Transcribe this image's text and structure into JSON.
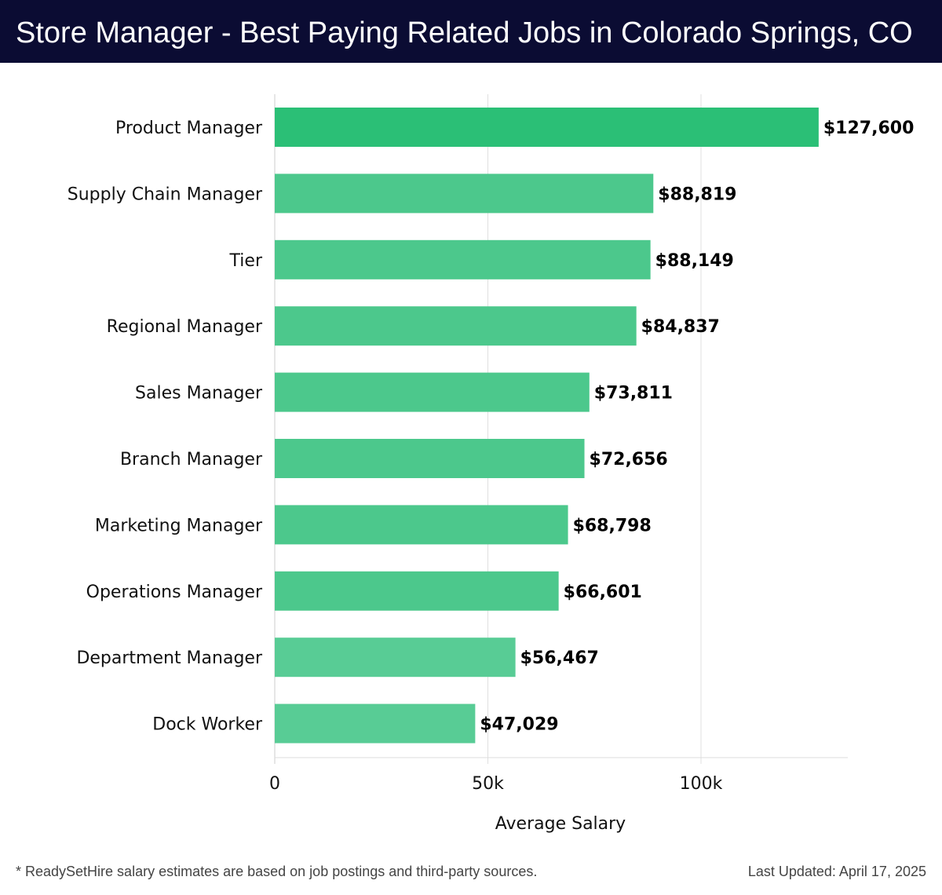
{
  "header": {
    "title": "Store Manager - Best Paying Related Jobs in Colorado Springs, CO"
  },
  "colors": {
    "header_bg": "#0b0c33",
    "bar_top": "#2bbf76",
    "bar_base": "#4cc88c",
    "bar_light": "#58cc95",
    "grid": "#e0e0e0",
    "text": "#111111"
  },
  "chart_data": {
    "type": "bar",
    "orientation": "horizontal",
    "title": "",
    "xlabel": "Average Salary",
    "ylabel": "",
    "xlim": [
      0,
      135000
    ],
    "x_ticks": [
      0,
      50000,
      100000
    ],
    "x_tick_labels": [
      "0",
      "50k",
      "100k"
    ],
    "grid": true,
    "categories": [
      "Product Manager",
      "Supply Chain Manager",
      "Tier",
      "Regional Manager",
      "Sales Manager",
      "Branch Manager",
      "Marketing Manager",
      "Operations Manager",
      "Department Manager",
      "Dock Worker"
    ],
    "values": [
      127600,
      88819,
      88149,
      84837,
      73811,
      72656,
      68798,
      66601,
      56467,
      47029
    ],
    "value_labels": [
      "$127,600",
      "$88,819",
      "$88,149",
      "$84,837",
      "$73,811",
      "$72,656",
      "$68,798",
      "$66,601",
      "$56,467",
      "$47,029"
    ]
  },
  "footer": {
    "note": "* ReadySetHire salary estimates are based on job postings and third-party sources.",
    "updated": "Last Updated: April 17, 2025"
  }
}
